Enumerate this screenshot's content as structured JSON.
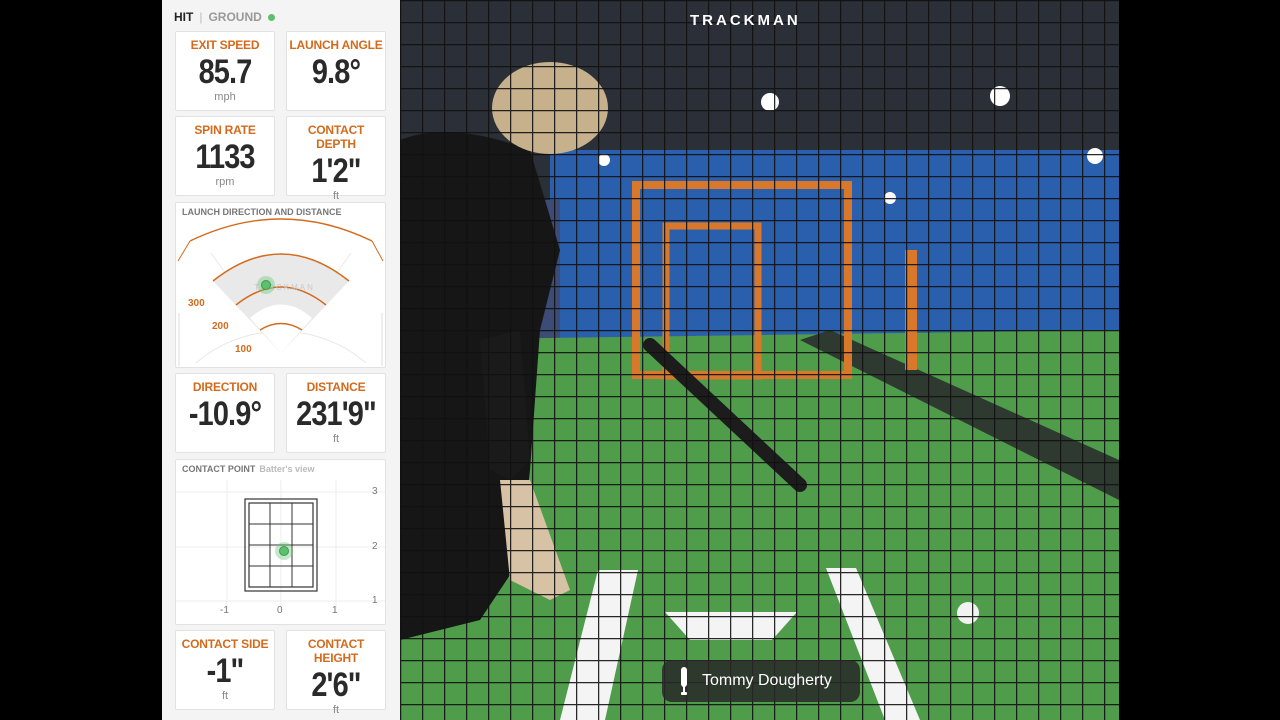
{
  "header": {
    "hit_label": "HIT",
    "ground_label": "GROUND"
  },
  "tiles": {
    "exit_speed": {
      "label": "EXIT SPEED",
      "value": "85.7",
      "unit": "mph"
    },
    "launch_angle": {
      "label": "LAUNCH ANGLE",
      "value": "9.8°",
      "unit": ""
    },
    "spin_rate": {
      "label": "SPIN RATE",
      "value": "1133",
      "unit": "rpm"
    },
    "contact_depth": {
      "label": "CONTACT DEPTH",
      "value": "1'2\"",
      "unit": "ft"
    },
    "direction": {
      "label": "DIRECTION",
      "value": "-10.9°",
      "unit": ""
    },
    "distance": {
      "label": "DISTANCE",
      "value": "231'9\"",
      "unit": "ft"
    },
    "contact_side": {
      "label": "CONTACT SIDE",
      "value": "-1\"",
      "unit": "ft"
    },
    "contact_height": {
      "label": "CONTACT HEIGHT",
      "value": "2'6\"",
      "unit": "ft"
    }
  },
  "launch_chart": {
    "title": "LAUNCH DIRECTION AND DISTANCE",
    "watermark": "TRACKMAN",
    "distance_labels": [
      "300",
      "200",
      "100"
    ]
  },
  "contact_chart": {
    "title": "CONTACT POINT",
    "subtitle": "Batter's view",
    "x_ticks": [
      "-1",
      "0",
      "1"
    ],
    "y_ticks": [
      "3",
      "2",
      "1"
    ]
  },
  "video": {
    "brand": "TRACKMAN",
    "batter_name": "Tommy Dougherty"
  },
  "colors": {
    "accent": "#d46a1c",
    "indicator": "#5cc16c"
  }
}
